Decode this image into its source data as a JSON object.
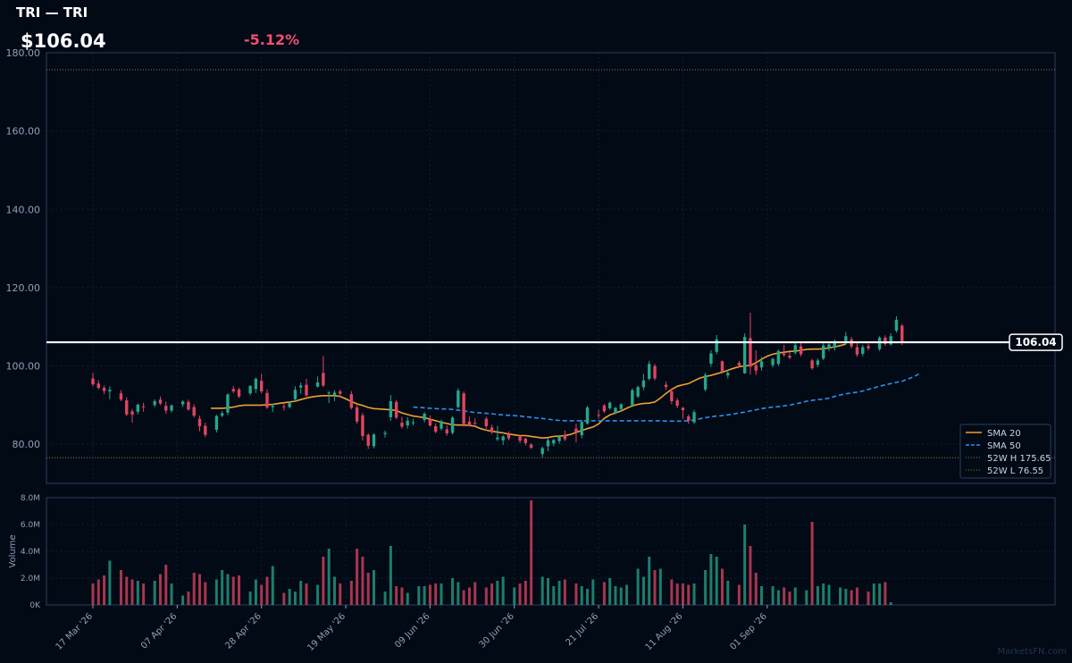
{
  "header": {
    "title": "TRI — TRI",
    "price": "$106.04",
    "change": "-5.12%"
  },
  "watermark": "MarketsFN.com",
  "colors": {
    "background": "#020a16",
    "panel_border": "#2a3f5c",
    "grid": "#0f1e30",
    "up": "#26a68a",
    "down": "#e04560",
    "sma20": "#f0a030",
    "sma50": "#2e8fe8",
    "high_low_line": "#a07a2a",
    "change_negative": "#f0506e",
    "axis_text": "#8fa0b8"
  },
  "chart_data": {
    "type": "candlestick",
    "ylim": [
      70,
      180
    ],
    "yticks": [
      "80.00",
      "100.00",
      "120.00",
      "140.00",
      "160.00",
      "180.00"
    ],
    "yticks_values": [
      80,
      100,
      120,
      140,
      160,
      180
    ],
    "xticks": [
      "17 Mar '26",
      "07 Apr '26",
      "28 Apr '26",
      "19 May '26",
      "09 Jun '26",
      "30 Jun '26",
      "21 Jul '26",
      "11 Aug '26",
      "01 Sep '26"
    ],
    "xticks_index": [
      0,
      15,
      30,
      45,
      60,
      75,
      90,
      105,
      120
    ],
    "last_price": 106.04,
    "last_price_label": "106.04",
    "week52_high": 175.65,
    "week52_low": 76.55,
    "legend": {
      "placement": "lower-right",
      "entries": [
        "SMA 20",
        "SMA 50",
        "52W H 175.65",
        "52W L 76.55"
      ]
    },
    "candles": [
      {
        "o": 96.8,
        "h": 98.3,
        "l": 94.8,
        "c": 95.3
      },
      {
        "o": 95.5,
        "h": 96.4,
        "l": 94.0,
        "c": 94.4
      },
      {
        "o": 94.4,
        "h": 95.0,
        "l": 92.8,
        "c": 93.6
      },
      {
        "o": 93.5,
        "h": 94.8,
        "l": 91.5,
        "c": 93.9
      },
      null,
      {
        "o": 93.0,
        "h": 93.8,
        "l": 91.0,
        "c": 91.4
      },
      {
        "o": 91.2,
        "h": 92.0,
        "l": 87.2,
        "c": 87.6
      },
      {
        "o": 88.4,
        "h": 89.0,
        "l": 85.5,
        "c": 87.6
      },
      {
        "o": 88.3,
        "h": 90.4,
        "l": 87.6,
        "c": 90.1
      },
      {
        "o": 89.7,
        "h": 90.6,
        "l": 88.3,
        "c": 89.6
      },
      null,
      {
        "o": 90.0,
        "h": 91.5,
        "l": 89.5,
        "c": 91.0
      },
      {
        "o": 91.4,
        "h": 92.2,
        "l": 90.0,
        "c": 90.4
      },
      {
        "o": 89.8,
        "h": 90.9,
        "l": 87.8,
        "c": 88.6
      },
      {
        "o": 88.6,
        "h": 90.2,
        "l": 88.1,
        "c": 89.9
      },
      null,
      {
        "o": 90.2,
        "h": 91.2,
        "l": 89.5,
        "c": 90.9
      },
      {
        "o": 90.8,
        "h": 91.4,
        "l": 88.5,
        "c": 88.9
      },
      {
        "o": 89.5,
        "h": 90.2,
        "l": 86.8,
        "c": 87.3
      },
      {
        "o": 86.5,
        "h": 87.3,
        "l": 83.3,
        "c": 84.6
      },
      {
        "o": 84.7,
        "h": 85.5,
        "l": 81.8,
        "c": 82.4
      },
      null,
      {
        "o": 83.7,
        "h": 87.5,
        "l": 83.0,
        "c": 87.2
      },
      {
        "o": 87.3,
        "h": 88.5,
        "l": 86.9,
        "c": 87.9
      },
      {
        "o": 88.1,
        "h": 93.0,
        "l": 87.5,
        "c": 92.7
      },
      {
        "o": 94.1,
        "h": 94.9,
        "l": 93.0,
        "c": 93.5
      },
      {
        "o": 94.0,
        "h": 94.5,
        "l": 91.8,
        "c": 92.2
      },
      null,
      {
        "o": 93.0,
        "h": 95.1,
        "l": 92.5,
        "c": 94.9
      },
      {
        "o": 94.1,
        "h": 97.1,
        "l": 93.1,
        "c": 96.7
      },
      {
        "o": 96.2,
        "h": 98.0,
        "l": 93.0,
        "c": 93.5
      },
      {
        "o": 93.1,
        "h": 94.0,
        "l": 89.0,
        "c": 89.4
      },
      {
        "o": 89.5,
        "h": 90.3,
        "l": 88.3,
        "c": 89.8
      },
      null,
      {
        "o": 89.7,
        "h": 90.4,
        "l": 88.6,
        "c": 89.6
      },
      {
        "o": 89.5,
        "h": 91.0,
        "l": 89.1,
        "c": 90.5
      },
      {
        "o": 91.5,
        "h": 94.8,
        "l": 90.8,
        "c": 93.9
      },
      {
        "o": 94.5,
        "h": 95.8,
        "l": 92.9,
        "c": 95.0
      },
      {
        "o": 95.2,
        "h": 96.7,
        "l": 92.1,
        "c": 92.5
      },
      null,
      {
        "o": 94.7,
        "h": 97.3,
        "l": 94.5,
        "c": 95.8
      },
      {
        "o": 98.2,
        "h": 102.6,
        "l": 94.6,
        "c": 95.0
      },
      {
        "o": 93.0,
        "h": 93.6,
        "l": 90.5,
        "c": 93.2
      },
      {
        "o": 92.5,
        "h": 93.8,
        "l": 91.0,
        "c": 93.2
      },
      {
        "o": 93.5,
        "h": 94.0,
        "l": 92.0,
        "c": 92.9
      },
      null,
      {
        "o": 92.8,
        "h": 93.6,
        "l": 88.9,
        "c": 89.3
      },
      {
        "o": 89.4,
        "h": 90.0,
        "l": 85.2,
        "c": 85.8
      },
      {
        "o": 87.4,
        "h": 88.0,
        "l": 81.0,
        "c": 82.1
      },
      {
        "o": 82.4,
        "h": 82.8,
        "l": 78.8,
        "c": 79.6
      },
      {
        "o": 79.5,
        "h": 82.8,
        "l": 79.0,
        "c": 82.5
      },
      null,
      {
        "o": 82.6,
        "h": 83.5,
        "l": 81.7,
        "c": 82.9
      },
      {
        "o": 86.9,
        "h": 92.6,
        "l": 86.0,
        "c": 91.0
      },
      {
        "o": 90.8,
        "h": 91.3,
        "l": 86.4,
        "c": 86.8
      },
      {
        "o": 85.5,
        "h": 87.0,
        "l": 84.0,
        "c": 84.5
      },
      {
        "o": 84.8,
        "h": 86.9,
        "l": 84.0,
        "c": 86.0
      },
      {
        "o": 85.5,
        "h": 86.5,
        "l": 84.8,
        "c": 85.6
      },
      null,
      {
        "o": 86.2,
        "h": 88.2,
        "l": 85.5,
        "c": 87.8
      },
      {
        "o": 86.4,
        "h": 87.3,
        "l": 84.5,
        "c": 84.8
      },
      {
        "o": 84.6,
        "h": 85.3,
        "l": 82.8,
        "c": 83.2
      },
      {
        "o": 84.0,
        "h": 86.3,
        "l": 83.5,
        "c": 85.9
      },
      {
        "o": 83.8,
        "h": 84.8,
        "l": 82.2,
        "c": 82.8
      },
      {
        "o": 82.9,
        "h": 87.2,
        "l": 82.5,
        "c": 86.8
      },
      {
        "o": 89.5,
        "h": 94.3,
        "l": 89.1,
        "c": 93.7
      },
      {
        "o": 93.0,
        "h": 93.5,
        "l": 84.5,
        "c": 85.2
      },
      {
        "o": 85.8,
        "h": 87.1,
        "l": 84.5,
        "c": 84.8
      },
      {
        "o": 85.5,
        "h": 86.6,
        "l": 84.6,
        "c": 85.3
      },
      null,
      {
        "o": 86.5,
        "h": 87.0,
        "l": 84.0,
        "c": 84.6
      },
      {
        "o": 84.3,
        "h": 85.0,
        "l": 82.6,
        "c": 83.1
      },
      {
        "o": 81.3,
        "h": 84.7,
        "l": 80.8,
        "c": 81.7
      },
      {
        "o": 81.0,
        "h": 82.3,
        "l": 79.8,
        "c": 82.0
      },
      {
        "o": 82.5,
        "h": 83.3,
        "l": 81.0,
        "c": 81.5
      },
      null,
      {
        "o": 82.0,
        "h": 82.4,
        "l": 80.3,
        "c": 80.9
      },
      {
        "o": 81.4,
        "h": 81.7,
        "l": 79.7,
        "c": 80.3
      },
      {
        "o": 79.9,
        "h": 80.3,
        "l": 78.8,
        "c": 79.1
      },
      null,
      {
        "o": 77.5,
        "h": 79.4,
        "l": 76.6,
        "c": 79.0
      },
      {
        "o": 79.5,
        "h": 81.6,
        "l": 78.2,
        "c": 81.0
      },
      {
        "o": 80.2,
        "h": 81.3,
        "l": 79.5,
        "c": 81.1
      },
      {
        "o": 80.8,
        "h": 82.3,
        "l": 80.1,
        "c": 81.9
      },
      {
        "o": 82.4,
        "h": 83.5,
        "l": 80.8,
        "c": 81.3
      },
      null,
      {
        "o": 84.0,
        "h": 85.3,
        "l": 80.5,
        "c": 83.1
      },
      {
        "o": 82.3,
        "h": 86.2,
        "l": 81.5,
        "c": 85.7
      },
      {
        "o": 85.3,
        "h": 89.8,
        "l": 85.0,
        "c": 89.4
      },
      null,
      {
        "o": 87.5,
        "h": 88.8,
        "l": 86.5,
        "c": 87.3
      },
      {
        "o": 89.9,
        "h": 90.3,
        "l": 88.0,
        "c": 88.4
      },
      {
        "o": 89.2,
        "h": 91.0,
        "l": 88.8,
        "c": 90.6
      },
      {
        "o": 88.0,
        "h": 89.5,
        "l": 87.7,
        "c": 89.3
      },
      {
        "o": 89.0,
        "h": 90.5,
        "l": 88.6,
        "c": 90.2
      },
      null,
      {
        "o": 90.0,
        "h": 94.3,
        "l": 89.5,
        "c": 93.8
      },
      {
        "o": 92.2,
        "h": 95.0,
        "l": 91.8,
        "c": 94.6
      },
      {
        "o": 94.6,
        "h": 98.0,
        "l": 93.8,
        "c": 96.3
      },
      {
        "o": 96.7,
        "h": 101.3,
        "l": 96.3,
        "c": 100.5
      },
      {
        "o": 100.0,
        "h": 100.5,
        "l": 96.3,
        "c": 96.8
      },
      null,
      {
        "o": 95.2,
        "h": 96.0,
        "l": 93.9,
        "c": 94.6
      },
      {
        "o": 93.5,
        "h": 94.3,
        "l": 90.2,
        "c": 91.0
      },
      {
        "o": 91.2,
        "h": 91.8,
        "l": 89.2,
        "c": 89.8
      },
      {
        "o": 89.3,
        "h": 89.5,
        "l": 86.5,
        "c": 88.7
      },
      {
        "o": 87.1,
        "h": 87.6,
        "l": 85.2,
        "c": 86.0
      },
      {
        "o": 85.6,
        "h": 88.8,
        "l": 85.2,
        "c": 88.2
      },
      null,
      {
        "o": 94.0,
        "h": 98.3,
        "l": 93.5,
        "c": 97.7
      },
      {
        "o": 100.6,
        "h": 104.0,
        "l": 99.8,
        "c": 103.2
      },
      {
        "o": 103.6,
        "h": 107.9,
        "l": 103.0,
        "c": 106.8
      },
      {
        "o": 101.2,
        "h": 101.4,
        "l": 98.1,
        "c": 98.5
      },
      {
        "o": 97.6,
        "h": 99.1,
        "l": 96.8,
        "c": 98.2
      },
      null,
      {
        "o": 100.8,
        "h": 101.3,
        "l": 99.8,
        "c": 100.1
      },
      {
        "o": 98.1,
        "h": 108.3,
        "l": 98.0,
        "c": 107.4
      },
      {
        "o": 107.1,
        "h": 113.6,
        "l": 97.8,
        "c": 99.8
      },
      {
        "o": 100.2,
        "h": 104.0,
        "l": 97.7,
        "c": 98.8
      },
      {
        "o": 99.6,
        "h": 102.3,
        "l": 98.8,
        "c": 101.2
      },
      null,
      {
        "o": 100.2,
        "h": 102.1,
        "l": 99.6,
        "c": 101.8
      },
      {
        "o": 100.5,
        "h": 104.2,
        "l": 100.0,
        "c": 103.8
      },
      {
        "o": 103.2,
        "h": 105.4,
        "l": 102.3,
        "c": 102.8
      },
      {
        "o": 102.6,
        "h": 103.6,
        "l": 101.7,
        "c": 102.1
      },
      {
        "o": 103.4,
        "h": 106.1,
        "l": 102.9,
        "c": 105.3
      },
      {
        "o": 105.0,
        "h": 106.0,
        "l": 102.4,
        "c": 103.0
      },
      null,
      {
        "o": 101.4,
        "h": 101.8,
        "l": 99.0,
        "c": 99.4
      },
      {
        "o": 100.3,
        "h": 101.9,
        "l": 99.7,
        "c": 101.4
      },
      {
        "o": 101.9,
        "h": 105.8,
        "l": 101.5,
        "c": 105.2
      },
      {
        "o": 104.6,
        "h": 106.0,
        "l": 103.8,
        "c": 105.5
      },
      {
        "o": 104.6,
        "h": 106.8,
        "l": 103.9,
        "c": 106.2
      },
      null,
      {
        "o": 106.0,
        "h": 108.7,
        "l": 105.5,
        "c": 107.6
      },
      {
        "o": 106.8,
        "h": 107.4,
        "l": 104.5,
        "c": 105.0
      },
      {
        "o": 104.8,
        "h": 106.3,
        "l": 102.3,
        "c": 102.9
      },
      {
        "o": 103.1,
        "h": 105.4,
        "l": 102.5,
        "c": 104.8
      },
      {
        "o": 105.1,
        "h": 105.7,
        "l": 104.0,
        "c": 104.5
      },
      null,
      {
        "o": 104.3,
        "h": 107.6,
        "l": 103.8,
        "c": 107.2
      },
      {
        "o": 107.2,
        "h": 107.8,
        "l": 105.1,
        "c": 105.6
      },
      {
        "o": 105.5,
        "h": 108.4,
        "l": 105.2,
        "c": 107.6
      },
      {
        "o": 109.0,
        "h": 112.7,
        "l": 108.5,
        "c": 111.8
      },
      {
        "o": 110.3,
        "h": 110.8,
        "l": 105.3,
        "c": 106.04
      }
    ],
    "sma20": {
      "start_index": 21,
      "values": [
        89.2,
        89.2,
        89.2,
        89.3,
        89.5,
        89.8,
        90.0,
        90.0,
        90.0,
        90.0,
        90.1,
        90.2,
        90.4,
        90.6,
        90.8,
        91.0,
        91.4,
        91.8,
        92.1,
        92.3,
        92.4,
        92.4,
        92.4,
        92.2,
        91.6,
        90.9,
        90.3,
        89.9,
        89.4,
        89.1,
        89.0,
        88.9,
        88.8,
        88.6,
        88.0,
        87.6,
        87.2,
        87.0,
        86.8,
        86.4,
        86.0,
        85.6,
        85.3,
        85.0,
        84.9,
        84.9,
        84.8,
        84.6,
        84.0,
        83.6,
        83.3,
        83.1,
        82.9,
        82.6,
        82.4,
        82.2,
        82.2,
        82.0,
        81.8,
        81.6,
        81.7,
        82.0,
        82.1,
        82.2,
        82.5,
        83.0,
        83.5,
        84.0,
        84.4,
        85.2,
        86.6,
        87.5,
        88.0,
        88.5,
        89.2,
        89.8,
        90.2,
        90.4,
        90.5,
        90.8,
        91.8,
        93.0,
        94.0,
        94.8,
        95.2,
        95.5,
        96.2,
        96.9,
        97.3,
        97.6,
        98.0,
        98.4,
        98.9,
        99.4,
        99.8,
        100.0,
        100.1,
        100.8,
        101.7,
        102.5,
        103.0,
        103.3,
        103.5,
        103.7,
        103.8,
        104.0,
        104.2,
        104.3,
        104.3,
        104.4,
        104.6,
        104.9,
        105.2,
        105.6
      ]
    },
    "sma50": {
      "start_index": 57,
      "values": [
        89.5,
        89.4,
        89.3,
        89.2,
        89.1,
        89.0,
        89.0,
        88.9,
        88.7,
        88.5,
        88.3,
        88.1,
        88.0,
        87.9,
        87.8,
        87.6,
        87.5,
        87.4,
        87.3,
        87.2,
        87.0,
        86.9,
        86.7,
        86.6,
        86.4,
        86.2,
        86.1,
        86.0,
        86.0,
        86.0,
        86.0,
        86.0,
        86.0,
        86.0,
        86.0,
        86.0,
        86.0,
        86.0,
        86.0,
        86.0,
        86.0,
        86.0,
        86.0,
        86.0,
        86.0,
        85.9,
        85.9,
        85.9,
        85.9,
        86.0,
        86.2,
        86.5,
        86.8,
        87.0,
        87.2,
        87.3,
        87.5,
        87.7,
        88.0,
        88.2,
        88.5,
        88.8,
        89.1,
        89.3,
        89.5,
        89.6,
        89.8,
        90.0,
        90.3,
        90.6,
        91.0,
        91.2,
        91.4,
        91.5,
        91.8,
        92.2,
        92.6,
        92.9,
        93.1,
        93.3,
        93.6,
        94.0,
        94.4,
        94.8,
        95.2,
        95.5,
        95.8,
        96.1,
        96.6,
        97.2,
        97.9
      ]
    },
    "volume": {
      "ylim": [
        0,
        8
      ],
      "unit": "M",
      "yticks": [
        "0K",
        "2.0M",
        "4.0M",
        "6.0M",
        "8.0M"
      ],
      "yticks_values": [
        0,
        2,
        4,
        6,
        8
      ],
      "ylabel": "Volume",
      "values": [
        1.6,
        1.9,
        2.2,
        3.3,
        null,
        2.6,
        2.1,
        1.9,
        1.8,
        1.6,
        null,
        1.8,
        2.3,
        3.0,
        1.6,
        null,
        0.7,
        1.0,
        2.4,
        2.3,
        1.7,
        null,
        1.9,
        2.6,
        2.3,
        2.1,
        2.2,
        null,
        1.0,
        1.9,
        1.5,
        2.1,
        2.9,
        null,
        0.9,
        1.2,
        1.0,
        1.8,
        1.6,
        null,
        1.5,
        3.6,
        4.2,
        2.1,
        1.6,
        null,
        1.8,
        4.2,
        3.6,
        2.4,
        2.6,
        null,
        1.0,
        4.4,
        1.4,
        1.3,
        0.9,
        null,
        1.4,
        1.4,
        1.5,
        1.6,
        1.6,
        null,
        2.0,
        1.7,
        1.1,
        1.3,
        1.7,
        null,
        1.3,
        1.6,
        1.8,
        2.1,
        null,
        1.3,
        1.6,
        1.8,
        7.8,
        null,
        2.1,
        2.0,
        1.4,
        1.8,
        1.9,
        null,
        1.6,
        1.4,
        1.2,
        1.9,
        null,
        1.7,
        2.0,
        1.4,
        1.3,
        1.5,
        null,
        2.7,
        2.1,
        3.6,
        2.6,
        2.7,
        null,
        1.9,
        1.6,
        1.6,
        1.5,
        1.6,
        null,
        2.6,
        3.8,
        3.6,
        2.7,
        1.8,
        null,
        1.5,
        6.0,
        4.4,
        2.4,
        1.4,
        null,
        1.4,
        1.1,
        1.3,
        1.0,
        1.3,
        null,
        1.1,
        6.2,
        1.4,
        1.6,
        1.5,
        null,
        1.3,
        1.2,
        1.1,
        1.3,
        null,
        1.0,
        1.6,
        1.6,
        1.7,
        0.2
      ]
    }
  }
}
